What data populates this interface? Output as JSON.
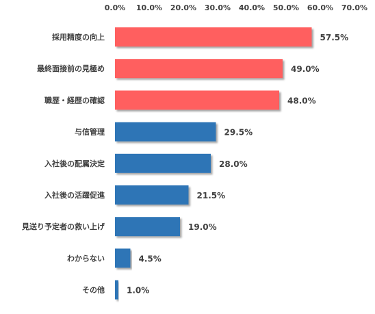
{
  "chart_data": {
    "type": "bar",
    "orientation": "horizontal",
    "title": "",
    "xlabel": "",
    "ylabel": "",
    "xlim": [
      0,
      70
    ],
    "x_ticks": [
      "0.0%",
      "10.0%",
      "20.0%",
      "30.0%",
      "40.0%",
      "50.0%",
      "60.0%",
      "70.0%"
    ],
    "x_axis_position": "top",
    "grid": false,
    "legend": "none",
    "categories": [
      "採用精度の向上",
      "最終面接前の見極め",
      "職歴・経歴の確認",
      "与信管理",
      "入社後の配属決定",
      "入社後の活躍促進",
      "見送り予定者の救い上げ",
      "わからない",
      "その他"
    ],
    "values": [
      57.5,
      49.0,
      48.0,
      29.5,
      28.0,
      21.5,
      19.0,
      4.5,
      1.0
    ],
    "value_labels": [
      "57.5%",
      "49.0%",
      "48.0%",
      "29.5%",
      "28.0%",
      "21.5%",
      "19.0%",
      "4.5%",
      "1.0%"
    ],
    "bar_colors": [
      "#ff5f5f",
      "#ff5f5f",
      "#ff5f5f",
      "#2e75b6",
      "#2e75b6",
      "#2e75b6",
      "#2e75b6",
      "#2e75b6",
      "#2e75b6"
    ],
    "text_color": "#404040"
  }
}
